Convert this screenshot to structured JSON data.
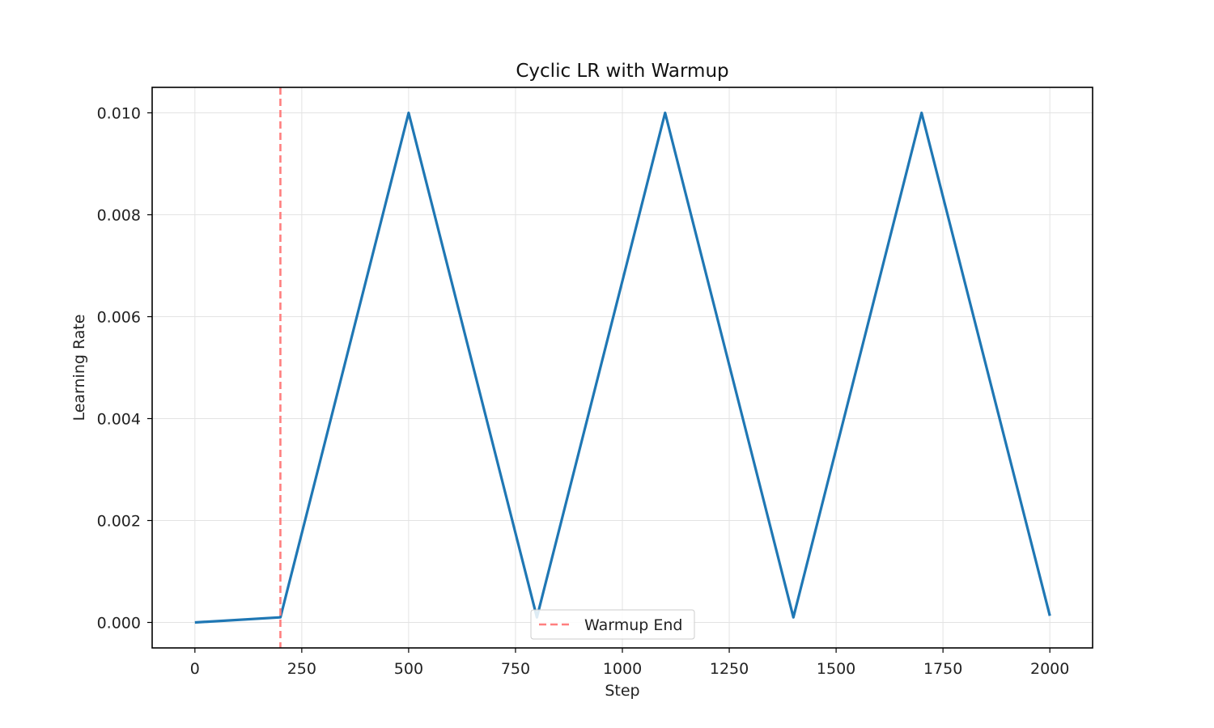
{
  "chart_data": {
    "type": "line",
    "title": "Cyclic LR with Warmup",
    "xlabel": "Step",
    "ylabel": "Learning Rate",
    "xlim": [
      -100,
      2100
    ],
    "ylim": [
      -0.0005,
      0.0105
    ],
    "xticks": [
      0,
      250,
      500,
      750,
      1000,
      1250,
      1500,
      1750,
      2000
    ],
    "xtick_labels": [
      "0",
      "250",
      "500",
      "750",
      "1000",
      "1250",
      "1500",
      "1750",
      "2000"
    ],
    "yticks": [
      0.0,
      0.002,
      0.004,
      0.006,
      0.008,
      0.01
    ],
    "ytick_labels": [
      "0.000",
      "0.002",
      "0.004",
      "0.006",
      "0.008",
      "0.010"
    ],
    "grid": true,
    "legend": {
      "placement": "lower-center",
      "entries": [
        "Warmup End"
      ]
    },
    "series": [
      {
        "color": "#1f77b4",
        "x": [
          0,
          200,
          500,
          800,
          1100,
          1400,
          1700,
          2000
        ],
        "y": [
          0.0,
          0.0001,
          0.01,
          0.0001,
          0.01,
          0.0001,
          0.01,
          0.00013
        ]
      }
    ],
    "vlines": [
      {
        "name": "Warmup End",
        "x": 200,
        "color": "#ff7f7f",
        "style": "dashed"
      }
    ]
  }
}
